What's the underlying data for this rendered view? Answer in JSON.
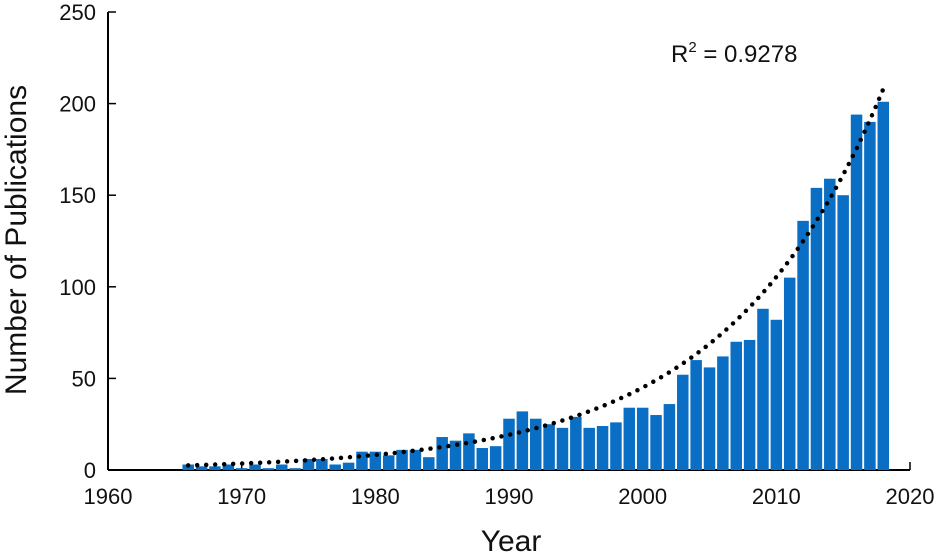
{
  "chart_data": {
    "type": "bar",
    "xlabel": "Year",
    "ylabel": "Number of Publications",
    "xlim": [
      1960,
      2020
    ],
    "ylim": [
      0,
      250
    ],
    "xticks": [
      1960,
      1970,
      1980,
      1990,
      2000,
      2010,
      2020
    ],
    "yticks": [
      0,
      50,
      100,
      150,
      200,
      250
    ],
    "grid": false,
    "bar_color": "#0a6fc4",
    "fit_color": "#000000",
    "annotation": {
      "base": "R",
      "sup": "2",
      "rest": " = 0.9278"
    },
    "fit": {
      "type": "exponential",
      "style": "dotted",
      "x_range": [
        1966,
        2018
      ],
      "y_start": 2.5,
      "y_end": 208
    },
    "series": [
      {
        "x": [
          1966,
          1967,
          1968,
          1969,
          1970,
          1971,
          1972,
          1973,
          1974,
          1975,
          1976,
          1977,
          1978,
          1979,
          1980,
          1981,
          1982,
          1983,
          1984,
          1985,
          1986,
          1987,
          1988,
          1989,
          1990,
          1991,
          1992,
          1993,
          1994,
          1995,
          1996,
          1997,
          1998,
          1999,
          2000,
          2001,
          2002,
          2003,
          2004,
          2005,
          2006,
          2007,
          2008,
          2009,
          2010,
          2011,
          2012,
          2013,
          2014,
          2015,
          2016,
          2017,
          2018
        ],
        "values": [
          3,
          2,
          2,
          3,
          1,
          3,
          1,
          3,
          1,
          6,
          6,
          3,
          4,
          10,
          10,
          8,
          11,
          11,
          7,
          18,
          16,
          20,
          12,
          13,
          28,
          32,
          28,
          25,
          23,
          29,
          23,
          24,
          26,
          34,
          34,
          30,
          36,
          52,
          60,
          56,
          62,
          70,
          71,
          88,
          82,
          105,
          136,
          154,
          159,
          150,
          194,
          190,
          201
        ]
      }
    ]
  }
}
